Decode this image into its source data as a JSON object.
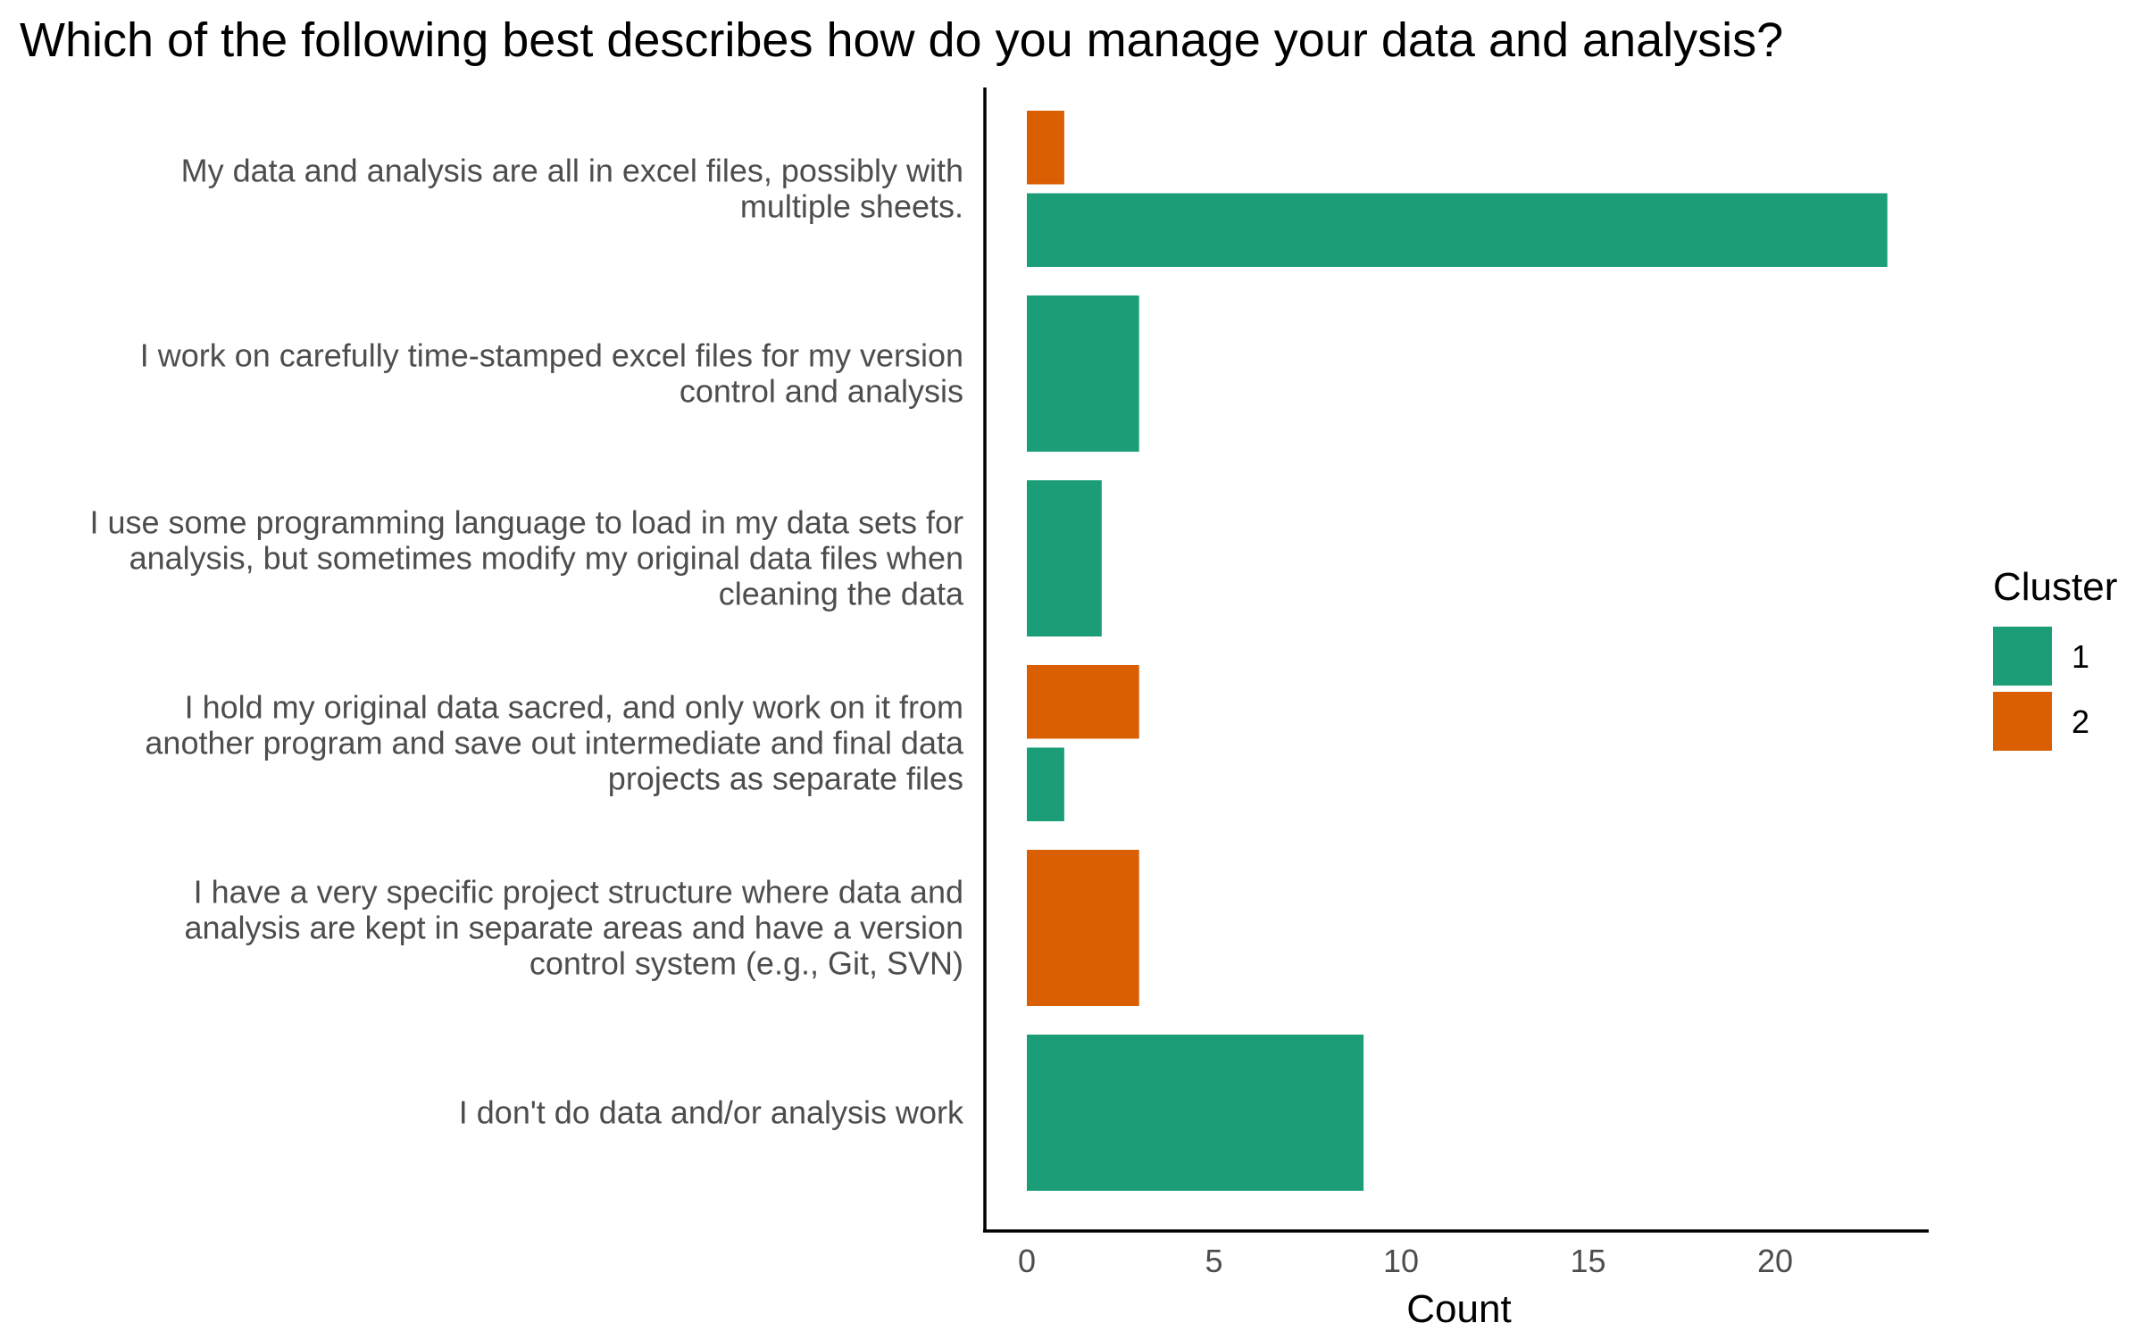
{
  "chart_data": {
    "type": "bar",
    "orientation": "horizontal",
    "title": "Which of the following best describes how do you manage your data and analysis?",
    "xlabel": "Count",
    "ylabel": "",
    "xlim": [
      0,
      24
    ],
    "x_ticks": [
      0,
      5,
      10,
      15,
      20
    ],
    "grid": false,
    "legend": {
      "title": "Cluster",
      "placement": "right"
    },
    "categories": [
      [
        "My data and analysis are all in excel files, possibly with",
        "multiple sheets."
      ],
      [
        "I work on carefully time-stamped excel files for my version",
        "control and analysis"
      ],
      [
        "I use some programming language to load in my data sets for",
        "analysis, but sometimes modify my original data files when",
        "cleaning the data"
      ],
      [
        "I hold my original data sacred, and only work on it from",
        "another program and save out intermediate and final data",
        "projects as separate files"
      ],
      [
        "I have a very specific project structure where data and",
        "analysis are kept in separate areas and have a version",
        "control system (e.g., Git, SVN)"
      ],
      [
        "I don't do data and/or analysis work"
      ]
    ],
    "series": [
      {
        "name": "1",
        "color": "#1b9e77",
        "values": [
          23,
          3,
          2,
          1,
          0,
          9
        ]
      },
      {
        "name": "2",
        "color": "#d95f02",
        "values": [
          1,
          0,
          0,
          3,
          3,
          0
        ]
      }
    ]
  }
}
